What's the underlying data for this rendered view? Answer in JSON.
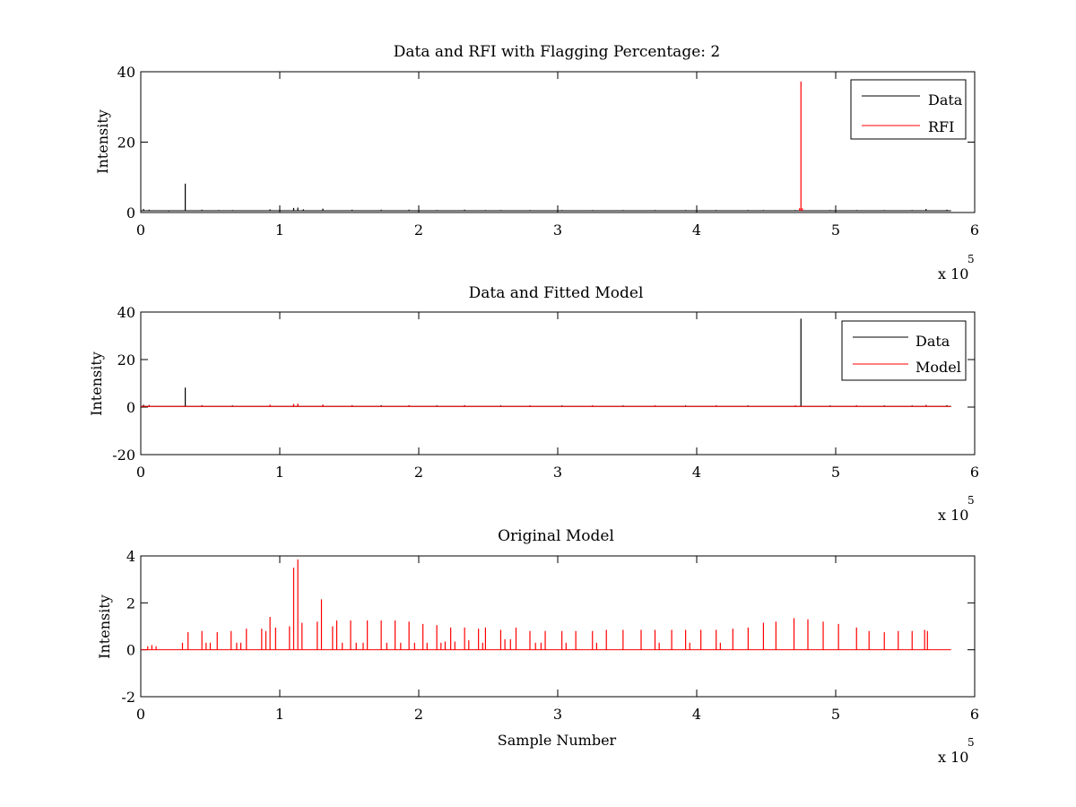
{
  "figure": {
    "colors": {
      "data": "#000000",
      "rfi": "#ff0000",
      "model": "#ff0000",
      "axes": "#000000",
      "background": "#ffffff"
    }
  },
  "chart_data": [
    {
      "type": "line",
      "title": "Data and RFI with Flagging Percentage: 2",
      "xlabel": "",
      "ylabel": "Intensity",
      "xlim": [
        0,
        6
      ],
      "ylim": [
        0,
        40
      ],
      "x_multiplier": "x 10",
      "x_multiplier_exp": "5",
      "x_ticks": [
        "0",
        "1",
        "2",
        "3",
        "4",
        "5",
        "6"
      ],
      "y_ticks": [
        {
          "v": 0,
          "label": "0"
        },
        {
          "v": 20,
          "label": "20"
        },
        {
          "v": 40,
          "label": "40"
        }
      ],
      "legend": {
        "position": "top-right",
        "entries": [
          "Data",
          "RFI"
        ]
      },
      "series": [
        {
          "name": "Data",
          "color": "#000000",
          "baseline": 0.5,
          "x_end": 5.83,
          "spikes": [
            [
              0.02,
              1.0
            ],
            [
              0.06,
              0.8
            ],
            [
              0.2,
              0.3
            ],
            [
              0.32,
              8.2
            ],
            [
              0.44,
              0.8
            ],
            [
              0.56,
              0.7
            ],
            [
              0.66,
              0.7
            ],
            [
              0.93,
              0.9
            ],
            [
              1.0,
              0.9
            ],
            [
              1.1,
              1.3
            ],
            [
              1.13,
              1.4
            ],
            [
              1.17,
              0.9
            ],
            [
              1.31,
              1.1
            ],
            [
              1.52,
              0.8
            ],
            [
              1.73,
              0.8
            ],
            [
              1.93,
              0.8
            ],
            [
              2.13,
              0.7
            ],
            [
              2.33,
              0.8
            ],
            [
              2.48,
              0.7
            ],
            [
              2.59,
              0.7
            ],
            [
              2.8,
              0.7
            ],
            [
              3.03,
              0.7
            ],
            [
              3.25,
              0.7
            ],
            [
              3.47,
              0.7
            ],
            [
              3.7,
              0.7
            ],
            [
              3.92,
              0.7
            ],
            [
              4.14,
              0.7
            ],
            [
              4.37,
              0.7
            ],
            [
              4.48,
              0.7
            ],
            [
              4.71,
              0.7
            ],
            [
              4.96,
              0.7
            ],
            [
              5.15,
              0.7
            ],
            [
              5.35,
              0.7
            ],
            [
              5.55,
              0.7
            ],
            [
              5.65,
              1.0
            ],
            [
              5.8,
              0.8
            ]
          ]
        },
        {
          "name": "RFI",
          "color": "#ff0000",
          "baseline": null,
          "x_end": null,
          "spikes": [
            [
              4.74,
              1.2
            ],
            [
              4.75,
              37.2
            ],
            [
              4.76,
              1.2
            ]
          ]
        }
      ]
    },
    {
      "type": "line",
      "title": "Data and Fitted Model",
      "xlabel": "",
      "ylabel": "Intensity",
      "xlim": [
        0,
        6
      ],
      "ylim": [
        -20,
        40
      ],
      "x_multiplier": "x 10",
      "x_multiplier_exp": "5",
      "x_ticks": [
        "0",
        "1",
        "2",
        "3",
        "4",
        "5",
        "6"
      ],
      "y_ticks": [
        {
          "v": -20,
          "label": "-20"
        },
        {
          "v": 0,
          "label": "0"
        },
        {
          "v": 20,
          "label": "20"
        },
        {
          "v": 40,
          "label": "40"
        }
      ],
      "legend": {
        "position": "top-right",
        "entries": [
          "Data",
          "Model"
        ]
      },
      "series": [
        {
          "name": "Data",
          "color": "#000000",
          "baseline": 0.3,
          "x_end": 5.83,
          "spikes": [
            [
              0.02,
              1.0
            ],
            [
              0.06,
              0.9
            ],
            [
              0.32,
              8.2
            ],
            [
              0.44,
              0.8
            ],
            [
              0.66,
              0.7
            ],
            [
              0.93,
              0.9
            ],
            [
              1.1,
              1.2
            ],
            [
              1.13,
              1.3
            ],
            [
              1.31,
              1.0
            ],
            [
              1.52,
              0.8
            ],
            [
              1.73,
              0.8
            ],
            [
              1.93,
              0.8
            ],
            [
              2.13,
              0.7
            ],
            [
              2.33,
              0.8
            ],
            [
              2.59,
              0.7
            ],
            [
              2.8,
              0.7
            ],
            [
              3.03,
              0.7
            ],
            [
              3.25,
              0.7
            ],
            [
              3.47,
              0.7
            ],
            [
              3.7,
              0.7
            ],
            [
              3.92,
              0.7
            ],
            [
              4.14,
              0.7
            ],
            [
              4.37,
              0.7
            ],
            [
              4.75,
              37.2
            ],
            [
              4.96,
              0.7
            ],
            [
              5.15,
              0.7
            ],
            [
              5.35,
              0.7
            ],
            [
              5.55,
              0.7
            ],
            [
              5.65,
              0.9
            ],
            [
              5.8,
              0.8
            ]
          ]
        },
        {
          "name": "Model",
          "color": "#ff0000",
          "baseline": 0.3,
          "x_end": 5.83,
          "spikes": [
            [
              0.06,
              0.8
            ],
            [
              0.44,
              0.7
            ],
            [
              0.93,
              1.0
            ],
            [
              1.1,
              1.3
            ],
            [
              1.13,
              1.4
            ],
            [
              1.31,
              1.0
            ],
            [
              1.52,
              0.7
            ],
            [
              1.93,
              0.7
            ],
            [
              2.33,
              0.7
            ],
            [
              2.8,
              0.7
            ],
            [
              3.25,
              0.7
            ],
            [
              3.7,
              0.7
            ],
            [
              4.14,
              0.7
            ],
            [
              4.71,
              0.8
            ],
            [
              5.15,
              0.7
            ],
            [
              5.65,
              0.8
            ]
          ]
        }
      ]
    },
    {
      "type": "line",
      "title": "Original Model",
      "xlabel": "Sample Number",
      "ylabel": "Intensity",
      "xlim": [
        0,
        6
      ],
      "ylim": [
        -2,
        4
      ],
      "x_multiplier": "x 10",
      "x_multiplier_exp": "5",
      "x_ticks": [
        "0",
        "1",
        "2",
        "3",
        "4",
        "5",
        "6"
      ],
      "y_ticks": [
        {
          "v": -2,
          "label": "-2"
        },
        {
          "v": 0,
          "label": "0"
        },
        {
          "v": 2,
          "label": "2"
        },
        {
          "v": 4,
          "label": "4"
        }
      ],
      "legend": null,
      "series": [
        {
          "name": "",
          "color": "#ff0000",
          "baseline": 0.0,
          "x_end": 5.83,
          "spikes": [
            [
              0.05,
              0.15
            ],
            [
              0.08,
              0.2
            ],
            [
              0.11,
              0.15
            ],
            [
              0.3,
              0.3
            ],
            [
              0.34,
              0.75
            ],
            [
              0.44,
              0.8
            ],
            [
              0.47,
              0.3
            ],
            [
              0.5,
              0.3
            ],
            [
              0.55,
              0.75
            ],
            [
              0.65,
              0.8
            ],
            [
              0.69,
              0.3
            ],
            [
              0.72,
              0.3
            ],
            [
              0.76,
              0.9
            ],
            [
              0.87,
              0.9
            ],
            [
              0.9,
              0.8
            ],
            [
              0.93,
              1.4
            ],
            [
              0.97,
              0.95
            ],
            [
              1.07,
              1.0
            ],
            [
              1.1,
              3.5
            ],
            [
              1.13,
              3.85
            ],
            [
              1.16,
              1.15
            ],
            [
              1.27,
              1.2
            ],
            [
              1.3,
              2.15
            ],
            [
              1.38,
              1.0
            ],
            [
              1.41,
              1.25
            ],
            [
              1.45,
              0.3
            ],
            [
              1.51,
              1.25
            ],
            [
              1.55,
              0.3
            ],
            [
              1.6,
              0.3
            ],
            [
              1.63,
              1.25
            ],
            [
              1.73,
              1.25
            ],
            [
              1.77,
              0.3
            ],
            [
              1.83,
              1.25
            ],
            [
              1.87,
              0.3
            ],
            [
              1.93,
              1.2
            ],
            [
              1.97,
              0.3
            ],
            [
              2.03,
              1.1
            ],
            [
              2.06,
              0.3
            ],
            [
              2.13,
              1.05
            ],
            [
              2.16,
              0.3
            ],
            [
              2.19,
              0.35
            ],
            [
              2.23,
              0.95
            ],
            [
              2.26,
              0.35
            ],
            [
              2.33,
              0.95
            ],
            [
              2.36,
              0.4
            ],
            [
              2.43,
              0.9
            ],
            [
              2.46,
              0.3
            ],
            [
              2.48,
              0.95
            ],
            [
              2.59,
              0.85
            ],
            [
              2.62,
              0.45
            ],
            [
              2.66,
              0.45
            ],
            [
              2.7,
              0.95
            ],
            [
              2.8,
              0.8
            ],
            [
              2.84,
              0.3
            ],
            [
              2.88,
              0.3
            ],
            [
              2.91,
              0.8
            ],
            [
              3.03,
              0.8
            ],
            [
              3.06,
              0.3
            ],
            [
              3.13,
              0.8
            ],
            [
              3.25,
              0.8
            ],
            [
              3.28,
              0.3
            ],
            [
              3.35,
              0.85
            ],
            [
              3.47,
              0.85
            ],
            [
              3.6,
              0.85
            ],
            [
              3.7,
              0.85
            ],
            [
              3.73,
              0.3
            ],
            [
              3.82,
              0.85
            ],
            [
              3.92,
              0.85
            ],
            [
              3.95,
              0.3
            ],
            [
              4.03,
              0.85
            ],
            [
              4.14,
              0.85
            ],
            [
              4.17,
              0.3
            ],
            [
              4.26,
              0.9
            ],
            [
              4.37,
              0.95
            ],
            [
              4.48,
              1.15
            ],
            [
              4.57,
              1.2
            ],
            [
              4.7,
              1.35
            ],
            [
              4.8,
              1.3
            ],
            [
              4.91,
              1.2
            ],
            [
              5.02,
              1.1
            ],
            [
              5.15,
              0.95
            ],
            [
              5.24,
              0.8
            ],
            [
              5.35,
              0.75
            ],
            [
              5.45,
              0.8
            ],
            [
              5.55,
              0.8
            ],
            [
              5.64,
              0.85
            ],
            [
              5.66,
              0.8
            ]
          ]
        }
      ]
    }
  ]
}
